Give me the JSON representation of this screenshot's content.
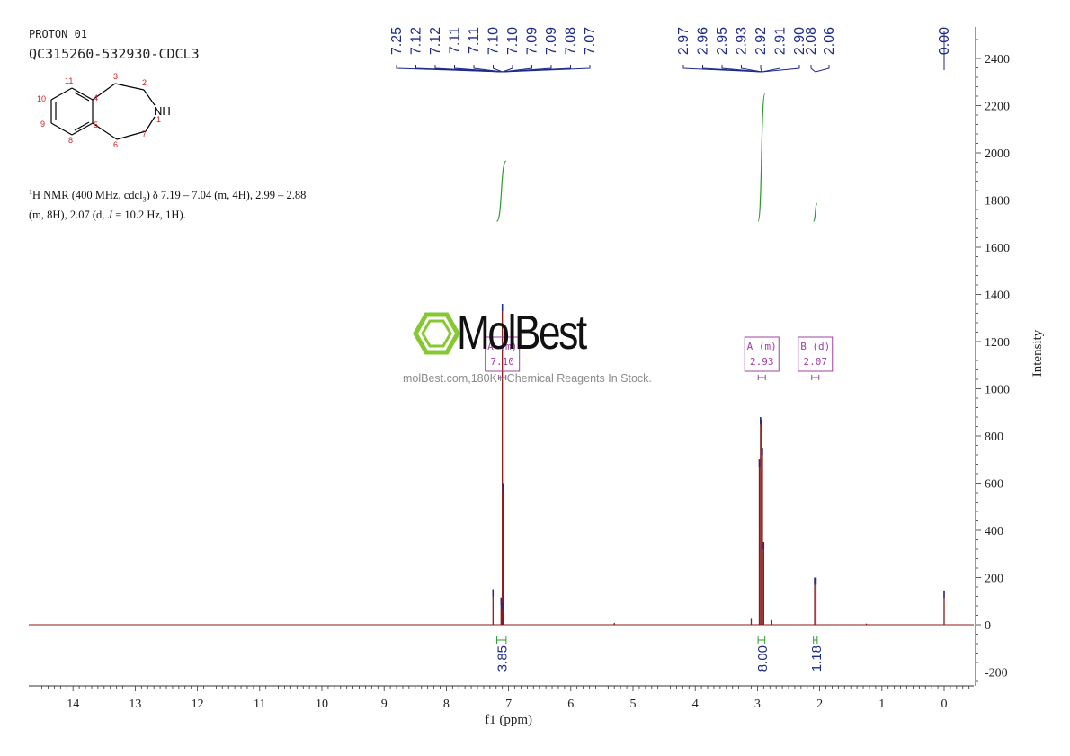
{
  "header": {
    "experiment": "PROTON_01",
    "sample": "QC315260-532930-CDCL3"
  },
  "description": {
    "sup": "1",
    "part1": "H NMR (400 MHz, cdcl",
    "sub": "3",
    "part2": ") δ 7.19 – 7.04 (m, 4H), 2.99 – 2.88",
    "line2a": "(m, 8H), 2.07 (d, ",
    "line2j": "J",
    "line2b": " = 10.2 Hz, 1H)."
  },
  "structure": {
    "atom_labels": [
      "1",
      "2",
      "3",
      "4",
      "5",
      "6",
      "7",
      "8",
      "9",
      "10",
      "11"
    ],
    "nh_label": "NH"
  },
  "watermark": {
    "brand": "MolBest",
    "tagline": "molBest.com,180K+ Chemical Reagents In Stock."
  },
  "colors": {
    "spectrum": "#8b1a1a",
    "peak_labels": "#1f2a8a",
    "integral": "#2e9a2e",
    "multiplet_box": "#a040a0",
    "axis": "#333333"
  },
  "chart_data": {
    "type": "line",
    "xlabel": "f1 (ppm)",
    "ylabel": "Intensity",
    "xlim": [
      14.6,
      -0.5
    ],
    "ylim": [
      -250,
      2500
    ],
    "x_ticks": [
      14,
      13,
      12,
      11,
      10,
      9,
      8,
      7,
      6,
      5,
      4,
      3,
      2,
      1,
      0
    ],
    "y_ticks": [
      -200,
      0,
      200,
      400,
      600,
      800,
      1000,
      1200,
      1400,
      1600,
      1800,
      2000,
      2200,
      2400
    ],
    "peaks": [
      {
        "ppm": 7.25,
        "height": 150
      },
      {
        "ppm": 7.12,
        "height": 115
      },
      {
        "ppm": 7.11,
        "height": 90
      },
      {
        "ppm": 7.1,
        "height": 1360
      },
      {
        "ppm": 7.09,
        "height": 600
      },
      {
        "ppm": 7.08,
        "height": 100
      },
      {
        "ppm": 2.97,
        "height": 700
      },
      {
        "ppm": 2.95,
        "height": 880
      },
      {
        "ppm": 2.93,
        "height": 870
      },
      {
        "ppm": 2.92,
        "height": 750
      },
      {
        "ppm": 2.9,
        "height": 350
      },
      {
        "ppm": 2.08,
        "height": 200
      },
      {
        "ppm": 2.06,
        "height": 200
      },
      {
        "ppm": 0.0,
        "height": 145
      }
    ],
    "minor_peaks": [
      {
        "ppm": 5.3,
        "height": 8
      },
      {
        "ppm": 3.1,
        "height": 25
      },
      {
        "ppm": 2.77,
        "height": 20
      },
      {
        "ppm": 1.25,
        "height": 5
      }
    ],
    "peak_labels_group1": [
      "7.25",
      "7.12",
      "7.12",
      "7.11",
      "7.11",
      "7.10",
      "7.10",
      "7.09",
      "7.09",
      "7.08",
      "7.07"
    ],
    "peak_labels_group2": [
      "2.97",
      "2.96",
      "2.95",
      "2.93",
      "2.92",
      "2.91",
      "2.90"
    ],
    "peak_labels_group3": [
      "2.08",
      "2.06"
    ],
    "peak_labels_group4": [
      "0.00"
    ],
    "integrals": [
      {
        "from": 7.19,
        "to": 7.04,
        "value": "3.85",
        "curve_top": 1965,
        "curve_bottom": 1710
      },
      {
        "from": 2.99,
        "to": 2.88,
        "value": "8.00",
        "curve_top": 2250,
        "curve_bottom": 1710
      },
      {
        "from": 2.1,
        "to": 2.04,
        "value": "1.18",
        "curve_top": 1785,
        "curve_bottom": 1710
      }
    ],
    "multiplets": [
      {
        "label": "A (m)",
        "shift": "7.10",
        "ppm": 7.1
      },
      {
        "label": "A (m)",
        "shift": "2.93",
        "ppm": 2.93
      },
      {
        "label": "B (d)",
        "shift": "2.07",
        "ppm": 2.07
      }
    ]
  }
}
